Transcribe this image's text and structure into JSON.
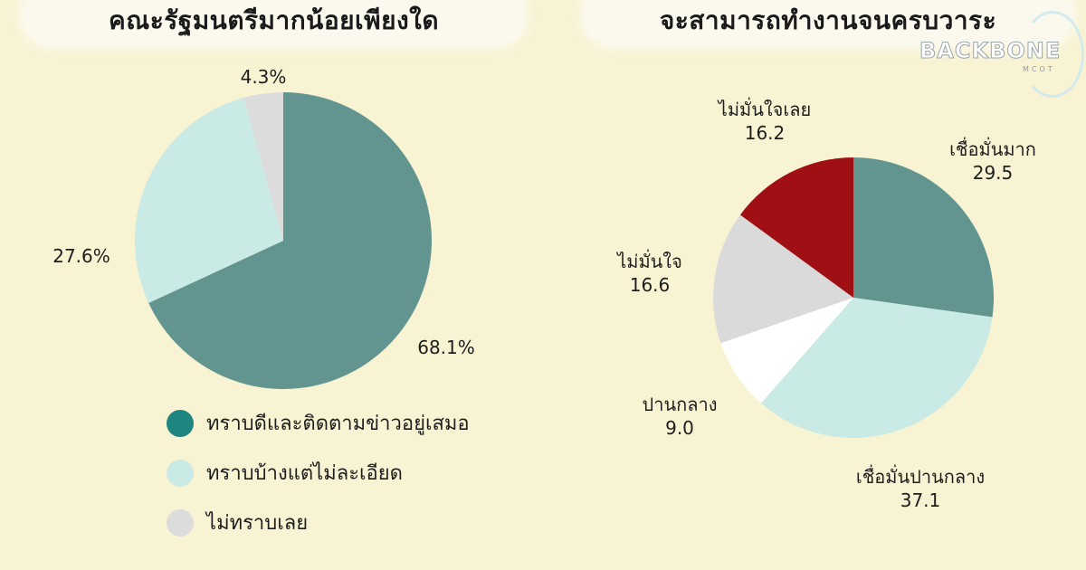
{
  "chart_data": [
    {
      "type": "pie",
      "title": "คณะรัฐมนตรีมากน้อยเพียงใด",
      "series": [
        {
          "label": "ทราบดีและติดตามข่าวอยู่เสมอ",
          "value": 68.1,
          "value_text": "68.1%",
          "color": "#629590"
        },
        {
          "label": "ทราบบ้างแต่ไม่ละเอียด",
          "value": 27.6,
          "value_text": "27.6%",
          "color": "#c9eae5"
        },
        {
          "label": "ไม่ทราบเลย",
          "value": 4.3,
          "value_text": "4.3%",
          "color": "#dcdcdc"
        }
      ],
      "legend_colors": [
        "#1e8580",
        "#c9eae5",
        "#dcdcdc"
      ],
      "legend_position": "bottom"
    },
    {
      "type": "pie",
      "title": "จะสามารถทำงานจนครบวาระ",
      "series": [
        {
          "label": "เชื่อมั่นมาก",
          "value": 29.5,
          "value_text": "29.5",
          "color": "#629590"
        },
        {
          "label": "เชื่อมั่นปานกลาง",
          "value": 37.1,
          "value_text": "37.1",
          "color": "#c9eae5"
        },
        {
          "label": "ปานกลาง",
          "value": 9.0,
          "value_text": "9.0",
          "color": "#ffffff"
        },
        {
          "label": "ไม่มั่นใจ",
          "value": 16.6,
          "value_text": "16.6",
          "color": "#dadada"
        },
        {
          "label": "ไม่มั่นใจเลย",
          "value": 16.2,
          "value_text": "16.2",
          "color": "#a00f13"
        }
      ]
    }
  ],
  "logo": {
    "word": "BACKBONE",
    "sub": "MCOT",
    "text_color": "#ffffff",
    "ring_color": "#cfe9ef"
  }
}
